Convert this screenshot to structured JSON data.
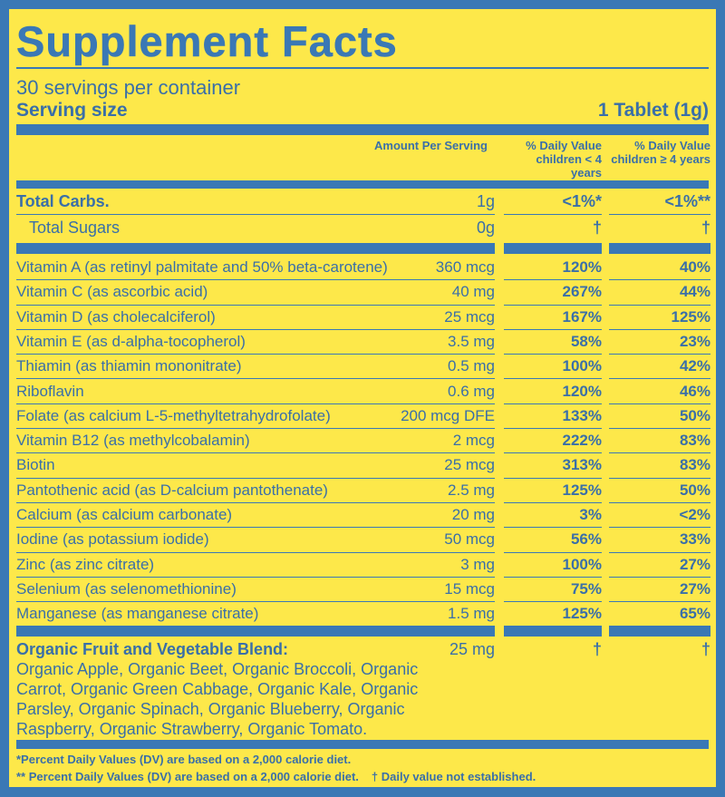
{
  "title": "Supplement Facts",
  "servings_per_container": "30 servings per container",
  "serving_size_label": "Serving size",
  "serving_size_value": "1 Tablet (1g)",
  "columns": {
    "amount": "Amount Per Serving",
    "dv_under4": "% Daily Value children < 4 years",
    "dv_over4": "% Daily Value children ≥ 4 years"
  },
  "macros": [
    {
      "name": "Total Carbs.",
      "amount": "1g",
      "dv1": "<1%*",
      "dv2": "<1%**"
    },
    {
      "name": "Total Sugars",
      "amount": "0g",
      "dv1": "†",
      "dv2": "†"
    }
  ],
  "nutrients": [
    {
      "name": "Vitamin A (as retinyl palmitate and 50% beta-carotene)",
      "amount": "360 mcg",
      "dv1": "120%",
      "dv2": "40%"
    },
    {
      "name": "Vitamin C (as ascorbic acid)",
      "amount": "40 mg",
      "dv1": "267%",
      "dv2": "44%"
    },
    {
      "name": "Vitamin D (as cholecalciferol)",
      "amount": "25 mcg",
      "dv1": "167%",
      "dv2": "125%"
    },
    {
      "name": "Vitamin E (as d-alpha-tocopherol)",
      "amount": "3.5 mg",
      "dv1": "58%",
      "dv2": "23%"
    },
    {
      "name": "Thiamin (as thiamin mononitrate)",
      "amount": "0.5 mg",
      "dv1": "100%",
      "dv2": "42%"
    },
    {
      "name": "Riboflavin",
      "amount": "0.6 mg",
      "dv1": "120%",
      "dv2": "46%"
    },
    {
      "name": "Folate (as calcium L-5-methyltetrahydrofolate)",
      "amount": "200 mcg DFE",
      "dv1": "133%",
      "dv2": "50%"
    },
    {
      "name": "Vitamin B12 (as methylcobalamin)",
      "amount": "2 mcg",
      "dv1": "222%",
      "dv2": "83%"
    },
    {
      "name": "Biotin",
      "amount": "25 mcg",
      "dv1": "313%",
      "dv2": "83%"
    },
    {
      "name": "Pantothenic acid (as D-calcium pantothenate)",
      "amount": "2.5 mg",
      "dv1": "125%",
      "dv2": "50%"
    },
    {
      "name": "Calcium (as calcium carbonate)",
      "amount": "20 mg",
      "dv1": "3%",
      "dv2": "<2%"
    },
    {
      "name": "Iodine (as potassium iodide)",
      "amount": "50 mcg",
      "dv1": "56%",
      "dv2": "33%"
    },
    {
      "name": "Zinc (as zinc citrate)",
      "amount": "3 mg",
      "dv1": "100%",
      "dv2": "27%"
    },
    {
      "name": "Selenium (as selenomethionine)",
      "amount": "15 mcg",
      "dv1": "75%",
      "dv2": "27%"
    },
    {
      "name": "Manganese (as manganese citrate)",
      "amount": "1.5 mg",
      "dv1": "125%",
      "dv2": "65%"
    }
  ],
  "blend": {
    "name": "Organic Fruit and Vegetable Blend:",
    "amount": "25 mg",
    "dv1": "†",
    "dv2": "†",
    "lines": [
      "Organic Apple, Organic Beet, Organic Broccoli, Organic",
      "Carrot, Organic Green Cabbage, Organic Kale, Organic",
      "Parsley, Organic Spinach, Organic Blueberry, Organic",
      "Raspberry, Organic Strawberry, Organic Tomato."
    ]
  },
  "footnotes": [
    "*Percent Daily Values (DV) are based on a 2,000 calorie diet.",
    "** Percent Daily Values (DV) are based on a 2,000 calorie diet.",
    "† Daily value not established."
  ]
}
